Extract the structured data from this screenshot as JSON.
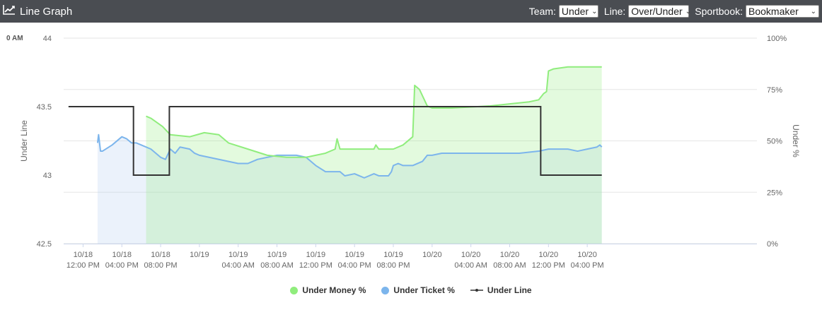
{
  "header": {
    "title": "Line Graph",
    "icon": "line-chart-icon",
    "bg_color": "#4a4d52",
    "controls": [
      {
        "label": "Team:",
        "value": "Under"
      },
      {
        "label": "Line:",
        "value": "Over/Under"
      },
      {
        "label": "Sportbook:",
        "value": "Bookmaker"
      }
    ]
  },
  "stray_label": "0 AM",
  "chart_data": {
    "type": "line",
    "title": "",
    "ylabel": "Under Line",
    "y2label": "Under %",
    "ylim": [
      42.5,
      44
    ],
    "y2lim": [
      0,
      100
    ],
    "yticks": [
      "42.5",
      "43",
      "43.5",
      "44"
    ],
    "y2ticks": [
      "0%",
      "25%",
      "50%",
      "75%",
      "100%"
    ],
    "xlim": [
      10,
      81.5
    ],
    "xticks": [
      {
        "t": 12,
        "l1": "10/18",
        "l2": "12:00 PM"
      },
      {
        "t": 16,
        "l1": "10/18",
        "l2": "04:00 PM"
      },
      {
        "t": 20,
        "l1": "10/18",
        "l2": "08:00 PM"
      },
      {
        "t": 24,
        "l1": "10/19",
        "l2": ""
      },
      {
        "t": 28,
        "l1": "10/19",
        "l2": "04:00 AM"
      },
      {
        "t": 32,
        "l1": "10/19",
        "l2": "08:00 AM"
      },
      {
        "t": 36,
        "l1": "10/19",
        "l2": "12:00 PM"
      },
      {
        "t": 40,
        "l1": "10/19",
        "l2": "04:00 PM"
      },
      {
        "t": 44,
        "l1": "10/19",
        "l2": "08:00 PM"
      },
      {
        "t": 48,
        "l1": "10/20",
        "l2": ""
      },
      {
        "t": 52,
        "l1": "10/20",
        "l2": "04:00 AM"
      },
      {
        "t": 56,
        "l1": "10/20",
        "l2": "08:00 AM"
      },
      {
        "t": 60,
        "l1": "10/20",
        "l2": "12:00 PM"
      },
      {
        "t": 64,
        "l1": "10/20",
        "l2": "04:00 PM"
      }
    ],
    "grid": true,
    "legend_position": "bottom",
    "series": [
      {
        "name": "Under Money %",
        "axis": "right",
        "color": "#90ed7d",
        "fill": "#90ed7d",
        "points": [
          [
            18.5,
            62
          ],
          [
            19,
            61
          ],
          [
            20.2,
            57
          ],
          [
            21,
            53
          ],
          [
            23,
            52
          ],
          [
            24.5,
            54
          ],
          [
            26,
            53
          ],
          [
            27,
            49
          ],
          [
            29,
            46
          ],
          [
            31,
            43
          ],
          [
            33,
            42
          ],
          [
            35,
            42
          ],
          [
            37,
            44
          ],
          [
            38,
            46
          ],
          [
            38.2,
            51
          ],
          [
            38.5,
            46
          ],
          [
            40,
            46
          ],
          [
            41,
            46
          ],
          [
            42,
            46
          ],
          [
            42.2,
            48
          ],
          [
            42.5,
            46
          ],
          [
            44,
            46
          ],
          [
            45,
            48
          ],
          [
            46,
            52
          ],
          [
            46.2,
            77
          ],
          [
            46.7,
            75
          ],
          [
            47.5,
            67
          ],
          [
            48,
            66
          ],
          [
            50,
            66
          ],
          [
            52,
            66.5
          ],
          [
            54,
            67
          ],
          [
            56,
            68
          ],
          [
            58,
            69
          ],
          [
            59,
            70
          ],
          [
            59.5,
            73
          ],
          [
            59.8,
            74
          ],
          [
            60,
            84
          ],
          [
            60.5,
            85
          ],
          [
            62,
            86
          ],
          [
            64,
            86
          ],
          [
            65.5,
            86
          ]
        ]
      },
      {
        "name": "Under Ticket %",
        "axis": "right",
        "color": "#7cb5ec",
        "fill": "#aecbef",
        "points": [
          [
            13.5,
            49
          ],
          [
            13.6,
            53
          ],
          [
            13.8,
            45
          ],
          [
            14,
            45
          ],
          [
            15,
            48
          ],
          [
            16,
            52
          ],
          [
            16.5,
            51
          ],
          [
            17,
            49
          ],
          [
            17.5,
            49
          ],
          [
            18,
            48
          ],
          [
            19,
            46
          ],
          [
            20,
            42
          ],
          [
            20.5,
            41
          ],
          [
            21,
            46
          ],
          [
            21.5,
            44
          ],
          [
            22,
            47
          ],
          [
            23,
            46
          ],
          [
            23.5,
            44
          ],
          [
            24,
            43
          ],
          [
            27,
            40
          ],
          [
            28,
            39
          ],
          [
            29,
            39
          ],
          [
            30,
            41
          ],
          [
            32,
            43
          ],
          [
            34,
            43
          ],
          [
            35,
            42
          ],
          [
            36,
            38
          ],
          [
            37,
            35
          ],
          [
            38,
            35
          ],
          [
            38.5,
            35
          ],
          [
            39,
            33
          ],
          [
            40,
            34
          ],
          [
            41,
            32
          ],
          [
            42,
            34
          ],
          [
            42.5,
            33
          ],
          [
            43,
            33
          ],
          [
            43.5,
            33
          ],
          [
            43.8,
            35
          ],
          [
            44,
            38
          ],
          [
            44.5,
            39
          ],
          [
            45,
            38
          ],
          [
            46,
            38
          ],
          [
            47,
            40
          ],
          [
            47.5,
            43
          ],
          [
            48,
            43
          ],
          [
            49,
            44
          ],
          [
            51,
            44
          ],
          [
            54,
            44
          ],
          [
            57,
            44
          ],
          [
            59,
            45
          ],
          [
            60,
            46
          ],
          [
            62,
            46
          ],
          [
            63,
            45
          ],
          [
            64,
            46
          ],
          [
            65,
            47
          ],
          [
            65.3,
            48
          ],
          [
            65.5,
            47
          ]
        ]
      },
      {
        "name": "Under Line",
        "axis": "left",
        "color": "#333333",
        "step": true,
        "points": [
          [
            10.5,
            43.5
          ],
          [
            17.2,
            43.5
          ],
          [
            17.2,
            43
          ],
          [
            20.9,
            43
          ],
          [
            20.9,
            43.5
          ],
          [
            59.2,
            43.5
          ],
          [
            59.2,
            43
          ],
          [
            65.5,
            43
          ]
        ]
      }
    ]
  }
}
